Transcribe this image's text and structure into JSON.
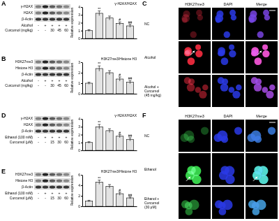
{
  "blots": [
    {
      "letter": "A",
      "rows": [
        "γ-H2AX",
        "H2AX",
        "β-Actin"
      ],
      "conditions": [
        {
          "label": "Alcohol",
          "values": [
            "-",
            "+",
            "+",
            "+",
            "+"
          ]
        },
        {
          "label": "Curcumol (mg/kg)",
          "values": [
            "-",
            "-",
            "30",
            "45",
            "60"
          ]
        }
      ]
    },
    {
      "letter": "B",
      "rows": [
        "H3K27me3",
        "Histone H3",
        "β-Actin"
      ],
      "conditions": [
        {
          "label": "Alcohol",
          "values": [
            "-",
            "+",
            "+",
            "+",
            "+"
          ]
        },
        {
          "label": "Curcumol (mg/kg)",
          "values": [
            "-",
            "-",
            "30",
            "45",
            "60"
          ]
        }
      ]
    },
    {
      "letter": "D",
      "rows": [
        "γ-H2AX",
        "H2AX",
        "β-Actin"
      ],
      "conditions": [
        {
          "label": "Ethanol (100 mM)",
          "values": [
            "-",
            "+",
            "+",
            "+",
            "+"
          ]
        },
        {
          "label": "Curcumol (μM)",
          "values": [
            "-",
            "-",
            "15",
            "30",
            "60"
          ]
        }
      ]
    },
    {
      "letter": "E",
      "rows": [
        "H3K27me3",
        "Histone H3",
        "β-Actin"
      ],
      "conditions": [
        {
          "label": "Ethanol (100 mM)",
          "values": [
            "-",
            "+",
            "+",
            "+",
            "+"
          ]
        },
        {
          "label": "Curcumol (μM)",
          "values": [
            "-",
            "-",
            "15",
            "30",
            "60"
          ]
        }
      ]
    }
  ],
  "images": [
    {
      "letter": "C",
      "columns": [
        "H3K27me3",
        "DAPI",
        "Merge"
      ],
      "rows": [
        "NC",
        "Alcohol",
        "Alcohol + Curcumol (45 mg/kg)"
      ]
    },
    {
      "letter": "F",
      "columns": [
        "H3K27me3",
        "DAPI",
        "Merge"
      ],
      "rows": [
        "NC",
        "Ethanol",
        "Ethanol + Curcumol (30 μM)"
      ]
    }
  ],
  "chart_data": [
    {
      "type": "bar",
      "title": "γ-H2AX/H2AX",
      "y_label": "Relative expression",
      "categories": [
        null,
        null,
        null,
        null,
        null
      ],
      "values": [
        1.0,
        3.2,
        2.6,
        1.9,
        1.6
      ],
      "errors": [
        0.12,
        0.3,
        0.25,
        0.2,
        0.2
      ],
      "annotations": [
        null,
        "**",
        null,
        "#",
        "##"
      ],
      "ylim": [
        0,
        4
      ],
      "yticks": [
        0,
        1,
        2,
        3,
        4
      ],
      "color": "#e3e3e3",
      "tick_labels": "y"
    },
    {
      "type": "bar",
      "title": "H3K27me3/Histone H3",
      "y_label": "Relative expression",
      "categories": [
        null,
        null,
        null,
        null,
        null
      ],
      "values": [
        1.0,
        2.4,
        2.0,
        1.4,
        1.1
      ],
      "errors": [
        0.1,
        0.25,
        0.2,
        0.2,
        0.15
      ],
      "annotations": [
        null,
        "**",
        null,
        "#",
        "##"
      ],
      "ylim": [
        0,
        3
      ],
      "yticks": [
        0,
        1,
        2,
        3
      ],
      "color": "#e3e3e3",
      "tick_labels": "y"
    },
    {
      "type": "bar",
      "title": "γ-H2AX/H2AX",
      "y_label": "Relative expression",
      "categories": [
        null,
        null,
        null,
        null,
        null
      ],
      "values": [
        1.0,
        3.0,
        2.5,
        1.8,
        1.4
      ],
      "errors": [
        0.1,
        0.3,
        0.25,
        0.2,
        0.2
      ],
      "annotations": [
        null,
        "**",
        null,
        "#",
        "##"
      ],
      "ylim": [
        0,
        4
      ],
      "yticks": [
        0,
        1,
        2,
        3,
        4
      ],
      "color": "#e3e3e3",
      "tick_labels": "y"
    },
    {
      "type": "bar",
      "title": "H3K27me3/Histone H3",
      "y_label": "Relative expression",
      "categories": [
        null,
        null,
        null,
        null,
        null
      ],
      "values": [
        1.0,
        4.6,
        3.8,
        2.4,
        1.6
      ],
      "errors": [
        0.15,
        0.4,
        0.35,
        0.3,
        0.2
      ],
      "annotations": [
        null,
        "**",
        null,
        "#",
        "##"
      ],
      "ylim": [
        0,
        6
      ],
      "yticks": [
        0,
        2,
        4,
        6
      ],
      "color": "#e3e3e3",
      "tick_labels": "y"
    }
  ]
}
